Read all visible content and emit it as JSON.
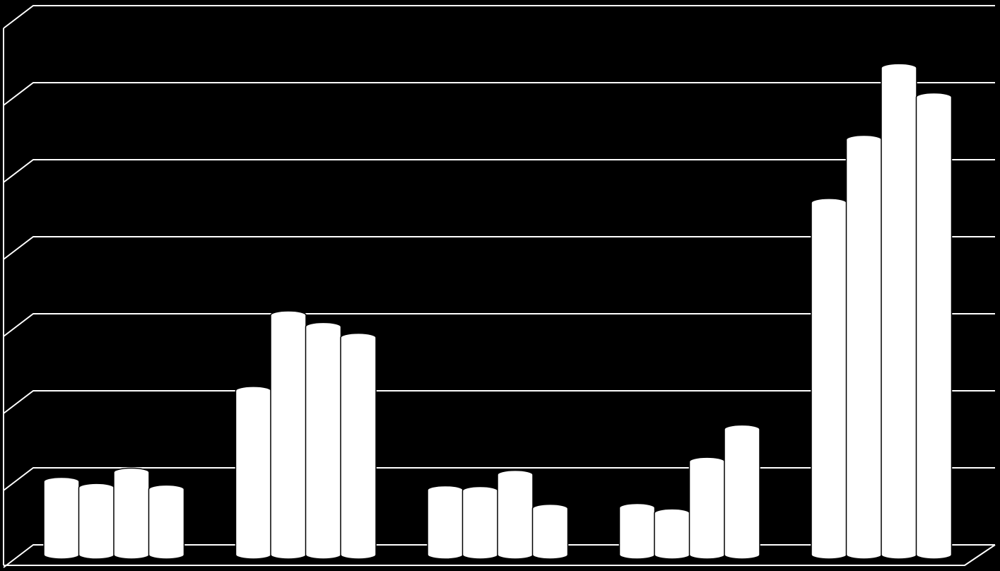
{
  "chart_data": {
    "type": "cylinder-bar",
    "categories": [
      null,
      null,
      null,
      null,
      null
    ],
    "series": [
      {
        "color": "#ffffff",
        "values": [
          0.95,
          2.13,
          0.84,
          0.61,
          4.57
        ]
      },
      {
        "color": "#ffffff",
        "values": [
          0.87,
          3.11,
          0.83,
          0.54,
          5.39
        ]
      },
      {
        "color": "#ffffff",
        "values": [
          1.07,
          2.96,
          1.04,
          1.21,
          6.32
        ]
      },
      {
        "color": "#ffffff",
        "values": [
          0.85,
          2.82,
          0.6,
          1.63,
          5.94
        ]
      }
    ],
    "ylim": [
      0,
      7
    ],
    "yticks": [
      0,
      1,
      2,
      3,
      4,
      5,
      6,
      7
    ],
    "grid": true
  }
}
